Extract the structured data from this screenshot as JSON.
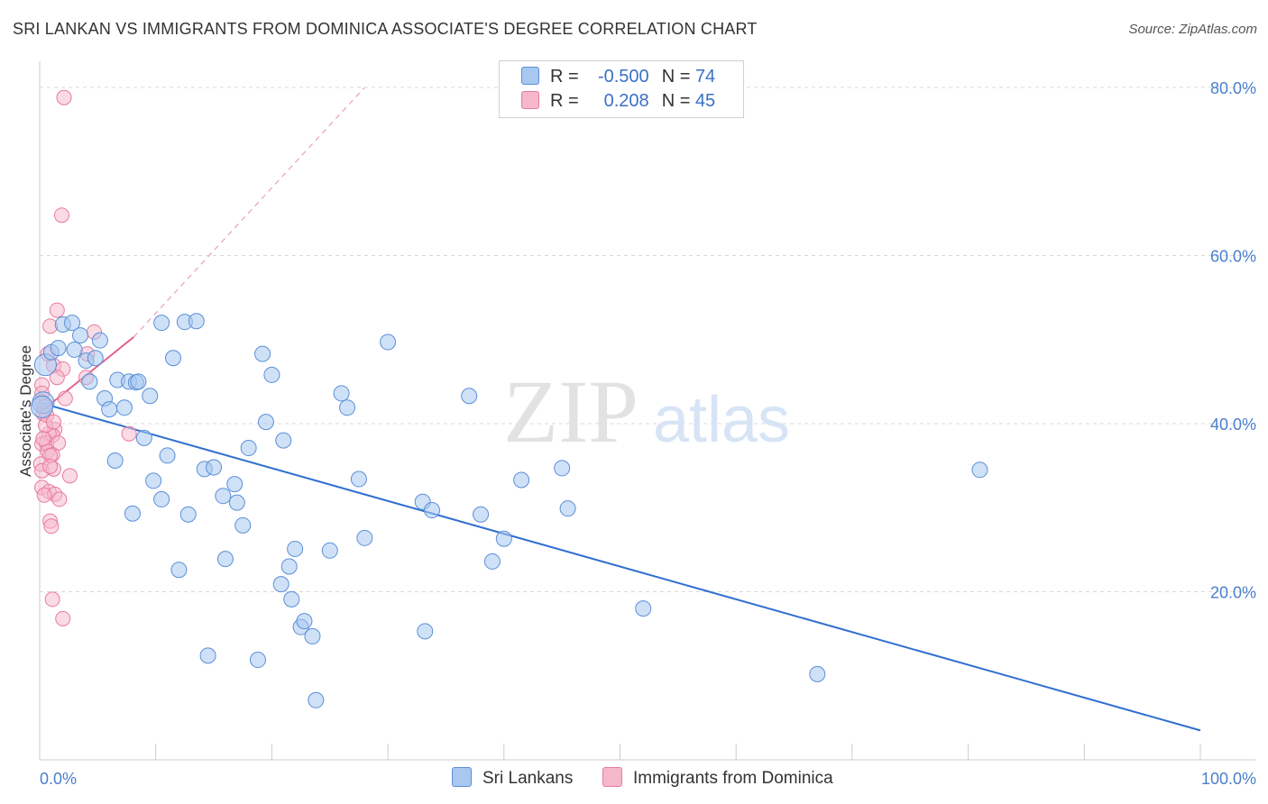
{
  "title": "SRI LANKAN VS IMMIGRANTS FROM DOMINICA ASSOCIATE'S DEGREE CORRELATION CHART",
  "source": "Source: ZipAtlas.com",
  "watermark": {
    "zip": "ZIP",
    "atlas": "atlas"
  },
  "legend": {
    "rows": [
      {
        "r_label": "R =",
        "r_value": "-0.500",
        "n_label": "N =",
        "n_value": "74",
        "color": "#a8c8f0"
      },
      {
        "r_label": "R =",
        "r_value": "0.208",
        "n_label": "N =",
        "n_value": "45",
        "color": "#f5b8cb"
      }
    ]
  },
  "colors": {
    "blue_fill": "#a8c8f0",
    "blue_stroke": "#5b8fd8",
    "blue_line": "#2f6fd0",
    "pink_fill": "#f5b8cb",
    "pink_stroke": "#e87a9c",
    "pink_line": "#e0658d",
    "grid": "#d8d8d8",
    "tick_text": "#4a7fcb"
  },
  "chart_data": {
    "type": "scatter",
    "title": "SRI LANKAN VS IMMIGRANTS FROM DOMINICA ASSOCIATE'S DEGREE CORRELATION CHART",
    "xlabel": "",
    "ylabel": "Associate's Degree",
    "xlim": [
      0,
      100
    ],
    "ylim": [
      0,
      80
    ],
    "x_tick_labels": [
      "0.0%",
      "100.0%"
    ],
    "y_tick_labels": [
      "20.0%",
      "40.0%",
      "60.0%",
      "80.0%"
    ],
    "y_ticks": [
      20,
      40,
      60,
      80
    ],
    "grid": true,
    "legend_position": "bottom-center",
    "series": [
      {
        "name": "Sri Lankans",
        "r": -0.5,
        "n": 74,
        "trend": {
          "x": [
            0,
            100
          ],
          "y": [
            42.5,
            3.5
          ],
          "dashed_extension": false
        },
        "points": [
          [
            0.3,
            42.5
          ],
          [
            0.5,
            47.0
          ],
          [
            1.0,
            48.5
          ],
          [
            1.6,
            49.0
          ],
          [
            2.0,
            51.8
          ],
          [
            2.8,
            52.0
          ],
          [
            3.0,
            48.8
          ],
          [
            3.5,
            50.5
          ],
          [
            4.0,
            47.5
          ],
          [
            4.3,
            45.0
          ],
          [
            4.8,
            47.8
          ],
          [
            5.2,
            49.9
          ],
          [
            5.6,
            43.0
          ],
          [
            6.0,
            41.7
          ],
          [
            6.5,
            35.6
          ],
          [
            6.7,
            45.2
          ],
          [
            7.3,
            41.9
          ],
          [
            7.7,
            45.0
          ],
          [
            8.3,
            44.9
          ],
          [
            8.5,
            45.0
          ],
          [
            9.0,
            38.3
          ],
          [
            8.0,
            29.3
          ],
          [
            9.5,
            43.3
          ],
          [
            9.8,
            33.2
          ],
          [
            10.5,
            31.0
          ],
          [
            10.5,
            52.0
          ],
          [
            11.0,
            36.2
          ],
          [
            11.5,
            47.8
          ],
          [
            12.0,
            22.6
          ],
          [
            12.5,
            52.1
          ],
          [
            12.8,
            29.2
          ],
          [
            13.5,
            52.2
          ],
          [
            14.2,
            34.6
          ],
          [
            14.5,
            12.4
          ],
          [
            15.0,
            34.8
          ],
          [
            15.8,
            31.4
          ],
          [
            16.0,
            23.9
          ],
          [
            16.8,
            32.8
          ],
          [
            17.0,
            30.6
          ],
          [
            17.5,
            27.9
          ],
          [
            18.0,
            37.1
          ],
          [
            18.8,
            11.9
          ],
          [
            19.2,
            48.3
          ],
          [
            19.5,
            40.2
          ],
          [
            20.0,
            45.8
          ],
          [
            20.8,
            20.9
          ],
          [
            21.0,
            38.0
          ],
          [
            21.5,
            23.0
          ],
          [
            21.7,
            19.1
          ],
          [
            22.0,
            25.1
          ],
          [
            22.5,
            15.8
          ],
          [
            22.8,
            16.5
          ],
          [
            23.5,
            14.7
          ],
          [
            23.8,
            7.1
          ],
          [
            25.0,
            24.9
          ],
          [
            26.0,
            43.6
          ],
          [
            26.5,
            41.9
          ],
          [
            27.5,
            33.4
          ],
          [
            28.0,
            26.4
          ],
          [
            30.0,
            49.7
          ],
          [
            33.0,
            30.7
          ],
          [
            33.2,
            15.3
          ],
          [
            33.8,
            29.7
          ],
          [
            37.0,
            43.3
          ],
          [
            38.0,
            29.2
          ],
          [
            39.0,
            23.6
          ],
          [
            40.0,
            26.3
          ],
          [
            41.5,
            33.3
          ],
          [
            45.0,
            34.7
          ],
          [
            45.5,
            29.9
          ],
          [
            52.0,
            18.0
          ],
          [
            81.0,
            34.5
          ],
          [
            67.0,
            10.2
          ],
          [
            0.2,
            42.0
          ]
        ]
      },
      {
        "name": "Immigrants from Dominica",
        "r": 0.208,
        "n": 45,
        "trend": {
          "x": [
            0,
            8.1
          ],
          "y": [
            41.3,
            50.3
          ],
          "dashed_extension": true,
          "dashed_to": {
            "x": 28,
            "y": 80
          }
        },
        "points": [
          [
            2.1,
            78.8
          ],
          [
            1.9,
            64.8
          ],
          [
            1.5,
            53.5
          ],
          [
            0.9,
            51.6
          ],
          [
            4.7,
            50.9
          ],
          [
            0.7,
            48.3
          ],
          [
            4.1,
            48.3
          ],
          [
            1.2,
            46.9
          ],
          [
            2.0,
            46.5
          ],
          [
            1.5,
            45.5
          ],
          [
            4.0,
            45.5
          ],
          [
            0.2,
            44.6
          ],
          [
            0.2,
            43.6
          ],
          [
            0.2,
            42.6
          ],
          [
            2.2,
            43.0
          ],
          [
            0.4,
            42.0
          ],
          [
            0.3,
            41.2
          ],
          [
            1.3,
            39.3
          ],
          [
            1.1,
            38.6
          ],
          [
            0.8,
            38.8
          ],
          [
            7.7,
            38.8
          ],
          [
            0.2,
            37.6
          ],
          [
            0.6,
            37.7
          ],
          [
            1.6,
            37.7
          ],
          [
            0.7,
            36.7
          ],
          [
            1.1,
            36.3
          ],
          [
            0.9,
            36.2
          ],
          [
            0.1,
            35.2
          ],
          [
            0.2,
            34.4
          ],
          [
            1.2,
            34.6
          ],
          [
            2.6,
            33.8
          ],
          [
            0.2,
            32.4
          ],
          [
            0.8,
            31.9
          ],
          [
            1.3,
            31.6
          ],
          [
            1.7,
            31.0
          ],
          [
            0.9,
            28.4
          ],
          [
            1.0,
            27.8
          ],
          [
            1.1,
            19.1
          ],
          [
            2.0,
            16.8
          ],
          [
            0.4,
            31.5
          ],
          [
            0.5,
            39.8
          ],
          [
            0.6,
            41.0
          ],
          [
            1.2,
            40.2
          ],
          [
            0.3,
            38.2
          ],
          [
            0.9,
            34.9
          ]
        ]
      }
    ]
  }
}
